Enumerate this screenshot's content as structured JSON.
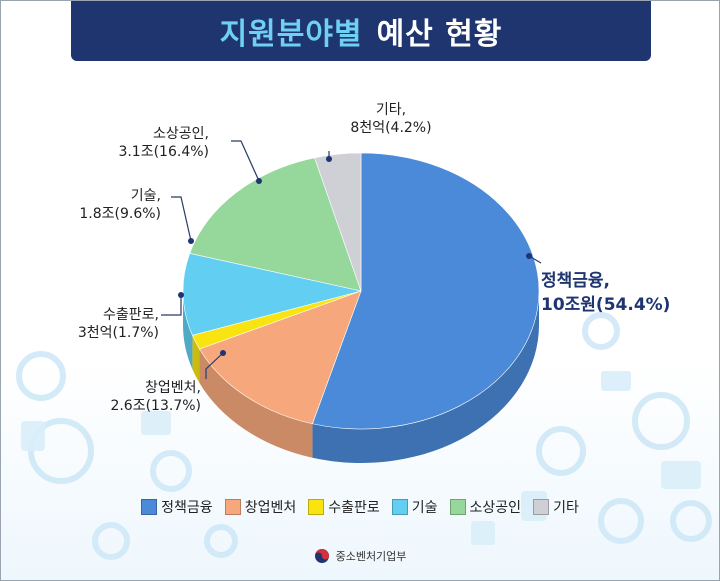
{
  "header": {
    "title_main": "지원분야별",
    "title_sub": "예산 현황"
  },
  "chart_data": {
    "type": "pie",
    "title": "지원분야별 예산 현황",
    "slices": [
      {
        "name": "정책금융",
        "amount": "10조원",
        "percent": 54.4,
        "label_line1": "정책금융,",
        "label_line2": "10조원(54.4%)",
        "color": "#4a8ad8"
      },
      {
        "name": "창업벤처",
        "amount": "2.6조",
        "percent": 13.7,
        "label_line1": "창업벤처,",
        "label_line2": "2.6조(13.7%)",
        "color": "#f6a87c"
      },
      {
        "name": "수출판로",
        "amount": "3천억",
        "percent": 1.7,
        "label_line1": "수출판로,",
        "label_line2": "3천억(1.7%)",
        "color": "#f9e412"
      },
      {
        "name": "기술",
        "amount": "1.8조",
        "percent": 9.6,
        "label_line1": "기술,",
        "label_line2": "1.8조(9.6%)",
        "color": "#62cff2"
      },
      {
        "name": "소상공인",
        "amount": "3.1조",
        "percent": 16.4,
        "label_line1": "소상공인,",
        "label_line2": "3.1조(16.4%)",
        "color": "#96d89c"
      },
      {
        "name": "기타",
        "amount": "8천억",
        "percent": 4.2,
        "label_line1": "기타,",
        "label_line2": "8천억(4.2%)",
        "color": "#cfd0d6"
      }
    ],
    "legend_position": "bottom"
  },
  "legend": [
    "정책금융",
    "창업벤처",
    "수출판로",
    "기술",
    "소상공인",
    "기타"
  ],
  "source": {
    "text": "중소벤처기업부",
    "icon": "taegeuk-emblem-icon"
  }
}
